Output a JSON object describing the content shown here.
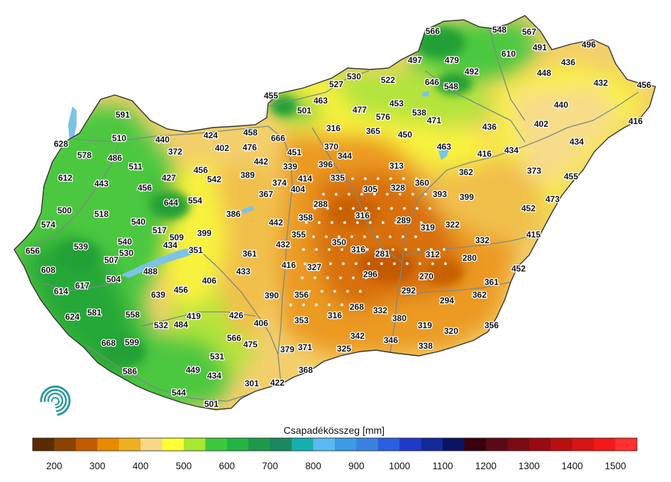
{
  "legend": {
    "title": "Csapadékösszeg [mm]",
    "ticks": [
      "200",
      "300",
      "400",
      "500",
      "600",
      "700",
      "800",
      "900",
      "1000",
      "1100",
      "1200",
      "1300",
      "1400",
      "1500"
    ],
    "colors": [
      "#5c2b00",
      "#8a4400",
      "#c05c00",
      "#e88a00",
      "#eeb022",
      "#f8d888",
      "#ffff33",
      "#a8e830",
      "#3cc83c",
      "#22b442",
      "#1e9a4a",
      "#1a8a5e",
      "#16b0b0",
      "#5abaf2",
      "#3c9ae6",
      "#3a82e0",
      "#2a5ee0",
      "#1f3ac8",
      "#142a9a",
      "#0a1460",
      "#3a0010",
      "#5a0a14",
      "#7a0a14",
      "#9a0a12",
      "#b81010",
      "#d81414",
      "#f41818",
      "#ff3030"
    ]
  },
  "map": {
    "water_color": "#7cc3e8",
    "land_colors": {
      "dry_core": "#d87010",
      "orange": "#eb9a20",
      "light_orange": "#f1c04c",
      "yellow_tan": "#f7dc8a",
      "yellow": "#f8f23c",
      "lime": "#b4e43c",
      "green": "#4cc840",
      "dark_green": "#28a838"
    },
    "stations": [
      {
        "v": "566"
      },
      {
        "v": "548"
      },
      {
        "v": "567"
      },
      {
        "v": "610"
      },
      {
        "v": "491"
      },
      {
        "v": "496"
      },
      {
        "v": "497"
      },
      {
        "v": "479"
      },
      {
        "v": "492"
      },
      {
        "v": "436"
      },
      {
        "v": "448"
      },
      {
        "v": "432"
      },
      {
        "v": "456"
      },
      {
        "v": "530"
      },
      {
        "v": "522"
      },
      {
        "v": "646"
      },
      {
        "v": "548"
      },
      {
        "v": "527"
      },
      {
        "v": "455"
      },
      {
        "v": "463"
      },
      {
        "v": "501"
      },
      {
        "v": "477"
      },
      {
        "v": "453"
      },
      {
        "v": "538"
      },
      {
        "v": "440"
      },
      {
        "v": "576"
      },
      {
        "v": "471"
      },
      {
        "v": "402"
      },
      {
        "v": "416"
      },
      {
        "v": "591"
      },
      {
        "v": "316"
      },
      {
        "v": "365"
      },
      {
        "v": "450"
      },
      {
        "v": "436"
      },
      {
        "v": "434"
      },
      {
        "v": "628"
      },
      {
        "v": "510"
      },
      {
        "v": "440"
      },
      {
        "v": "424"
      },
      {
        "v": "458"
      },
      {
        "v": "666"
      },
      {
        "v": "578"
      },
      {
        "v": "486"
      },
      {
        "v": "372"
      },
      {
        "v": "402"
      },
      {
        "v": "476"
      },
      {
        "v": "451"
      },
      {
        "v": "370"
      },
      {
        "v": "344"
      },
      {
        "v": "463"
      },
      {
        "v": "416"
      },
      {
        "v": "434"
      },
      {
        "v": "511"
      },
      {
        "v": "442"
      },
      {
        "v": "396"
      },
      {
        "v": "313"
      },
      {
        "v": "612"
      },
      {
        "v": "456"
      },
      {
        "v": "542"
      },
      {
        "v": "389"
      },
      {
        "v": "339"
      },
      {
        "v": "414"
      },
      {
        "v": "335"
      },
      {
        "v": "362"
      },
      {
        "v": "373"
      },
      {
        "v": "443"
      },
      {
        "v": "427"
      },
      {
        "v": "374"
      },
      {
        "v": "360"
      },
      {
        "v": "455"
      },
      {
        "v": "456"
      },
      {
        "v": "404"
      },
      {
        "v": "305"
      },
      {
        "v": "328"
      },
      {
        "v": "393"
      },
      {
        "v": "399"
      },
      {
        "v": "367"
      },
      {
        "v": "644"
      },
      {
        "v": "554"
      },
      {
        "v": "473"
      },
      {
        "v": "288"
      },
      {
        "v": "500"
      },
      {
        "v": "518"
      },
      {
        "v": "386"
      },
      {
        "v": "316"
      },
      {
        "v": "452"
      },
      {
        "v": "358"
      },
      {
        "v": "289"
      },
      {
        "v": "540"
      },
      {
        "v": "442"
      },
      {
        "v": "574"
      },
      {
        "v": "517"
      },
      {
        "v": "399"
      },
      {
        "v": "319"
      },
      {
        "v": "322"
      },
      {
        "v": "434"
      },
      {
        "v": "509"
      },
      {
        "v": "355"
      },
      {
        "v": "415"
      },
      {
        "v": "540"
      },
      {
        "v": "432"
      },
      {
        "v": "332"
      },
      {
        "v": "539"
      },
      {
        "v": "350"
      },
      {
        "v": "656"
      },
      {
        "v": "351"
      },
      {
        "v": "530"
      },
      {
        "v": "361"
      },
      {
        "v": "316"
      },
      {
        "v": "281"
      },
      {
        "v": "312"
      },
      {
        "v": "280"
      },
      {
        "v": "507"
      },
      {
        "v": "416"
      },
      {
        "v": "327"
      },
      {
        "v": "608"
      },
      {
        "v": "433"
      },
      {
        "v": "452"
      },
      {
        "v": "488"
      },
      {
        "v": "296"
      },
      {
        "v": "270"
      },
      {
        "v": "504"
      },
      {
        "v": "406"
      },
      {
        "v": "361"
      },
      {
        "v": "617"
      },
      {
        "v": "456"
      },
      {
        "v": "614"
      },
      {
        "v": "639"
      },
      {
        "v": "390"
      },
      {
        "v": "356"
      },
      {
        "v": "292"
      },
      {
        "v": "294"
      },
      {
        "v": "362"
      },
      {
        "v": "581"
      },
      {
        "v": "268"
      },
      {
        "v": "332"
      },
      {
        "v": "558"
      },
      {
        "v": "624"
      },
      {
        "v": "419"
      },
      {
        "v": "426"
      },
      {
        "v": "316"
      },
      {
        "v": "380"
      },
      {
        "v": "353"
      },
      {
        "v": "532"
      },
      {
        "v": "484"
      },
      {
        "v": "406"
      },
      {
        "v": "319"
      },
      {
        "v": "356"
      },
      {
        "v": "320"
      },
      {
        "v": "342"
      },
      {
        "v": "566"
      },
      {
        "v": "668"
      },
      {
        "v": "599"
      },
      {
        "v": "475"
      },
      {
        "v": "346"
      },
      {
        "v": "338"
      },
      {
        "v": "379"
      },
      {
        "v": "371"
      },
      {
        "v": "325"
      },
      {
        "v": "531"
      },
      {
        "v": "586"
      },
      {
        "v": "449"
      },
      {
        "v": "434"
      },
      {
        "v": "368"
      },
      {
        "v": "422"
      },
      {
        "v": "301"
      },
      {
        "v": "544"
      },
      {
        "v": "501"
      }
    ]
  }
}
